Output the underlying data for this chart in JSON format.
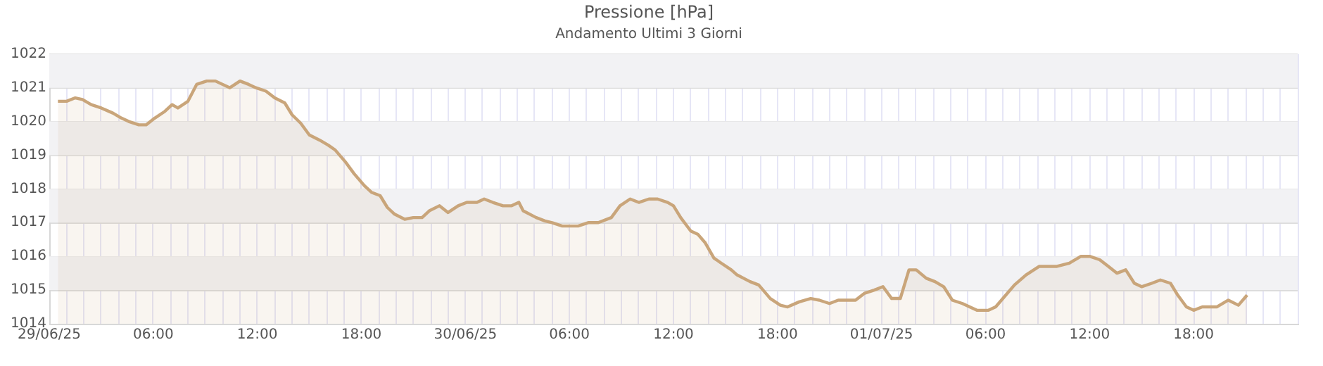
{
  "chart_data": {
    "type": "area",
    "title": "Pressione [hPa]",
    "subtitle": "Andamento Ultimi 3 Giorni",
    "x": [
      "--06-29T00:30",
      "--06-29T01:00",
      "--06-29T01:30",
      "--06-29T01:55",
      "--06-29T02:25",
      "--06-29T03:00",
      "--06-29T03:40",
      "--06-29T04:10",
      "--06-29T04:35",
      "--06-29T05:10",
      "--06-29T05:35",
      "--06-29T06:05",
      "--06-29T06:40",
      "--06-29T07:05",
      "--06-29T07:25",
      "--06-29T08:00",
      "--06-29T08:30",
      "--06-29T09:05",
      "--06-29T09:35",
      "--06-29T10:25",
      "--06-29T11:00",
      "--06-29T11:30",
      "--06-29T11:55",
      "--06-29T12:30",
      "--06-29T13:00",
      "--06-29T13:35",
      "--06-29T14:00",
      "--06-29T14:30",
      "--06-29T15:00",
      "--06-29T15:35",
      "--06-29T16:05",
      "--06-29T16:30",
      "--06-29T17:05",
      "--06-29T17:35",
      "--06-29T18:10",
      "--06-29T18:35",
      "--06-29T19:05",
      "--06-29T19:30",
      "--06-29T19:55",
      "--06-29T20:30",
      "--06-29T21:00",
      "--06-29T21:30",
      "--06-29T21:55",
      "--06-29T22:30",
      "--06-29T23:00",
      "--06-29T23:35",
      "--06-30T00:05",
      "--06-30T00:40",
      "--06-30T01:05",
      "--06-30T01:35",
      "--06-30T02:10",
      "--06-30T02:40",
      "--06-30T03:05",
      "--06-30T03:20",
      "--06-30T04:05",
      "--06-30T04:35",
      "--06-30T05:00",
      "--06-30T05:35",
      "--06-30T06:30",
      "--06-30T07:05",
      "--06-30T07:40",
      "--06-30T08:25",
      "--06-30T08:55",
      "--06-30T09:30",
      "--06-30T10:00",
      "--06-30T10:35",
      "--06-30T11:05",
      "--06-30T11:40",
      "--06-30T12:00",
      "--06-30T12:25",
      "--06-30T13:00",
      "--06-30T13:25",
      "--06-30T13:50",
      "--06-30T14:20",
      "--06-30T14:45",
      "--06-30T15:20",
      "--06-30T15:40",
      "--06-30T16:25",
      "--06-30T16:55",
      "--06-30T17:35",
      "--06-30T18:10",
      "--06-30T18:35",
      "--06-30T19:15",
      "--06-30T19:55",
      "--06-30T20:25",
      "--06-30T21:00",
      "--06-30T21:30",
      "--06-30T22:30",
      "--06-30T23:00",
      "--06-30T23:35",
      "--07-01T00:05",
      "--07-01T00:35",
      "--07-01T01:05",
      "--07-01T01:35",
      "--07-01T02:00",
      "--07-01T02:35",
      "--07-01T03:05",
      "--07-01T03:35",
      "--07-01T04:05",
      "--07-01T04:40",
      "--07-01T05:30",
      "--07-01T06:10",
      "--07-01T06:35",
      "--07-01T07:10",
      "--07-01T07:40",
      "--07-01T08:20",
      "--07-01T09:05",
      "--07-01T10:05",
      "--07-01T10:50",
      "--07-01T11:30",
      "--07-01T12:00",
      "--07-01T12:35",
      "--07-01T13:05",
      "--07-01T13:35",
      "--07-01T14:05",
      "--07-01T14:35",
      "--07-01T15:00",
      "--07-01T15:35",
      "--07-01T16:05",
      "--07-01T16:40",
      "--07-01T17:05",
      "--07-01T17:35",
      "--07-01T18:00",
      "--07-01T18:30",
      "--07-01T19:20",
      "--07-01T20:00",
      "--07-01T20:35",
      "--07-01T21:05"
    ],
    "series": [
      {
        "color": "#c9a57a",
        "values": [
          1020.6,
          1020.6,
          1020.7,
          1020.65,
          1020.5,
          1020.4,
          1020.25,
          1020.1,
          1020.0,
          1019.9,
          1019.9,
          1020.1,
          1020.3,
          1020.5,
          1020.4,
          1020.6,
          1021.1,
          1021.2,
          1021.2,
          1021.0,
          1021.2,
          1021.1,
          1021.0,
          1020.9,
          1020.7,
          1020.55,
          1020.2,
          1019.95,
          1019.6,
          1019.45,
          1019.3,
          1019.15,
          1018.8,
          1018.45,
          1018.1,
          1017.9,
          1017.8,
          1017.45,
          1017.25,
          1017.1,
          1017.15,
          1017.15,
          1017.35,
          1017.5,
          1017.3,
          1017.5,
          1017.6,
          1017.6,
          1017.7,
          1017.6,
          1017.5,
          1017.5,
          1017.6,
          1017.35,
          1017.15,
          1017.05,
          1017.0,
          1016.9,
          1016.9,
          1017.0,
          1017.0,
          1017.15,
          1017.5,
          1017.7,
          1017.6,
          1017.7,
          1017.7,
          1017.6,
          1017.5,
          1017.15,
          1016.75,
          1016.65,
          1016.4,
          1015.95,
          1015.8,
          1015.6,
          1015.45,
          1015.25,
          1015.15,
          1014.75,
          1014.55,
          1014.5,
          1014.65,
          1014.75,
          1014.7,
          1014.6,
          1014.7,
          1014.7,
          1014.9,
          1015.0,
          1015.1,
          1014.75,
          1014.75,
          1015.6,
          1015.6,
          1015.35,
          1015.25,
          1015.1,
          1014.7,
          1014.6,
          1014.4,
          1014.4,
          1014.5,
          1014.85,
          1015.15,
          1015.45,
          1015.7,
          1015.7,
          1015.8,
          1016.0,
          1016.0,
          1015.9,
          1015.7,
          1015.5,
          1015.6,
          1015.2,
          1015.1,
          1015.2,
          1015.3,
          1015.2,
          1014.85,
          1014.5,
          1014.4,
          1014.5,
          1014.5,
          1014.7,
          1014.55,
          1014.85
        ]
      }
    ],
    "ylim": [
      1014,
      1022
    ],
    "yticks": [
      1014,
      1015,
      1016,
      1017,
      1018,
      1019,
      1020,
      1021,
      1022
    ],
    "xlim": [
      "--06-29T00:00",
      "--07-02T00:00"
    ],
    "xticks": [
      {
        "value": "--06-29T00:00",
        "label": "29/06/25"
      },
      {
        "value": "--06-29T01:00",
        "label": null
      },
      {
        "value": "--06-29T02:00",
        "label": null
      },
      {
        "value": "--06-29T03:00",
        "label": null
      },
      {
        "value": "--06-29T04:00",
        "label": null
      },
      {
        "value": "--06-29T05:00",
        "label": null
      },
      {
        "value": "--06-29T06:00",
        "label": "06:00"
      },
      {
        "value": "--06-29T07:00",
        "label": null
      },
      {
        "value": "--06-29T08:00",
        "label": null
      },
      {
        "value": "--06-29T09:00",
        "label": null
      },
      {
        "value": "--06-29T10:00",
        "label": null
      },
      {
        "value": "--06-29T11:00",
        "label": null
      },
      {
        "value": "--06-29T12:00",
        "label": "12:00"
      },
      {
        "value": "--06-29T13:00",
        "label": null
      },
      {
        "value": "--06-29T14:00",
        "label": null
      },
      {
        "value": "--06-29T15:00",
        "label": null
      },
      {
        "value": "--06-29T16:00",
        "label": null
      },
      {
        "value": "--06-29T17:00",
        "label": null
      },
      {
        "value": "--06-29T18:00",
        "label": "18:00"
      },
      {
        "value": "--06-29T19:00",
        "label": null
      },
      {
        "value": "--06-29T20:00",
        "label": null
      },
      {
        "value": "--06-29T21:00",
        "label": null
      },
      {
        "value": "--06-29T22:00",
        "label": null
      },
      {
        "value": "--06-29T23:00",
        "label": null
      },
      {
        "value": "--06-30T00:00",
        "label": "30/06/25"
      },
      {
        "value": "--06-30T01:00",
        "label": null
      },
      {
        "value": "--06-30T02:00",
        "label": null
      },
      {
        "value": "--06-30T03:00",
        "label": null
      },
      {
        "value": "--06-30T04:00",
        "label": null
      },
      {
        "value": "--06-30T05:00",
        "label": null
      },
      {
        "value": "--06-30T06:00",
        "label": "06:00"
      },
      {
        "value": "--06-30T07:00",
        "label": null
      },
      {
        "value": "--06-30T08:00",
        "label": null
      },
      {
        "value": "--06-30T09:00",
        "label": null
      },
      {
        "value": "--06-30T10:00",
        "label": null
      },
      {
        "value": "--06-30T11:00",
        "label": null
      },
      {
        "value": "--06-30T12:00",
        "label": "12:00"
      },
      {
        "value": "--06-30T13:00",
        "label": null
      },
      {
        "value": "--06-30T14:00",
        "label": null
      },
      {
        "value": "--06-30T15:00",
        "label": null
      },
      {
        "value": "--06-30T16:00",
        "label": null
      },
      {
        "value": "--06-30T17:00",
        "label": null
      },
      {
        "value": "--06-30T18:00",
        "label": "18:00"
      },
      {
        "value": "--06-30T19:00",
        "label": null
      },
      {
        "value": "--06-30T20:00",
        "label": null
      },
      {
        "value": "--06-30T21:00",
        "label": null
      },
      {
        "value": "--06-30T22:00",
        "label": null
      },
      {
        "value": "--06-30T23:00",
        "label": null
      },
      {
        "value": "--07-01T00:00",
        "label": "01/07/25"
      },
      {
        "value": "--07-01T01:00",
        "label": null
      },
      {
        "value": "--07-01T02:00",
        "label": null
      },
      {
        "value": "--07-01T03:00",
        "label": null
      },
      {
        "value": "--07-01T04:00",
        "label": null
      },
      {
        "value": "--07-01T05:00",
        "label": null
      },
      {
        "value": "--07-01T06:00",
        "label": "06:00"
      },
      {
        "value": "--07-01T07:00",
        "label": null
      },
      {
        "value": "--07-01T08:00",
        "label": null
      },
      {
        "value": "--07-01T09:00",
        "label": null
      },
      {
        "value": "--07-01T10:00",
        "label": null
      },
      {
        "value": "--07-01T11:00",
        "label": null
      },
      {
        "value": "--07-01T12:00",
        "label": "12:00"
      },
      {
        "value": "--07-01T13:00",
        "label": null
      },
      {
        "value": "--07-01T14:00",
        "label": null
      },
      {
        "value": "--07-01T15:00",
        "label": null
      },
      {
        "value": "--07-01T16:00",
        "label": null
      },
      {
        "value": "--07-01T17:00",
        "label": null
      },
      {
        "value": "--07-01T18:00",
        "label": "18:00"
      },
      {
        "value": "--07-01T19:00",
        "label": null
      },
      {
        "value": "--07-01T20:00",
        "label": null
      },
      {
        "value": "--07-01T21:00",
        "label": null
      },
      {
        "value": "--07-01T22:00",
        "label": null
      },
      {
        "value": "--07-01T23:00",
        "label": null
      },
      {
        "value": "--07-02T00:00",
        "label": null
      }
    ],
    "grid": true,
    "legend": false,
    "marker": "none",
    "line_style": "solid"
  }
}
